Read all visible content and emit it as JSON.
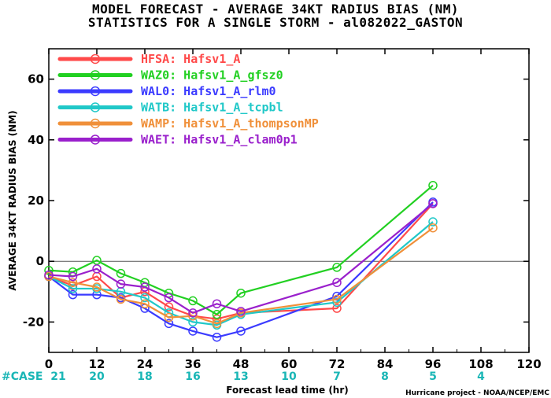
{
  "title_line1": "MODEL FORECAST - AVERAGE 34KT RADIUS BIAS (NM)",
  "title_line2": "STATISTICS FOR A SINGLE STORM - al082022_GASTON",
  "case_header": "#CASE",
  "case_counts": [
    "21",
    "20",
    "18",
    "16",
    "13",
    "10",
    "7",
    "8",
    "5",
    "4"
  ],
  "credit": "Hurricane project - NOAA/NCEP/EMC",
  "chart_data": {
    "type": "line",
    "xlabel": "Forecast lead time (hr)",
    "ylabel": "AVERAGE 34KT RADIUS BIAS (NM)",
    "xlim": [
      0,
      120
    ],
    "ylim": [
      -30,
      70
    ],
    "xticks": [
      0,
      12,
      24,
      36,
      48,
      60,
      72,
      84,
      96,
      108,
      120
    ],
    "yticks": [
      -20,
      0,
      20,
      40,
      60
    ],
    "zero_line": true,
    "legend_position": "top-left",
    "case_ticks": [
      0,
      12,
      24,
      36,
      48,
      60,
      72,
      84,
      96,
      108
    ],
    "series": [
      {
        "name": "HFSA:",
        "label": "Hafsv1_A",
        "color": "#ff4a4a",
        "x": [
          0,
          6,
          12,
          18,
          24,
          30,
          36,
          42,
          48,
          72,
          96
        ],
        "y": [
          -5,
          -8,
          -5,
          -12,
          -10,
          -15,
          -18,
          -19,
          -17,
          -15.5,
          19
        ]
      },
      {
        "name": "WAZ0:",
        "label": "Hafsv1_A_gfsz0",
        "color": "#22d022",
        "x": [
          0,
          6,
          12,
          18,
          24,
          30,
          36,
          42,
          48,
          72,
          96
        ],
        "y": [
          -3,
          -3.5,
          0.3,
          -4,
          -7,
          -10.5,
          -13,
          -17.5,
          -10.5,
          -2,
          25
        ]
      },
      {
        "name": "WAL0:",
        "label": "Hafsv1_A_rlm0",
        "color": "#3b3bff",
        "x": [
          0,
          6,
          12,
          18,
          24,
          30,
          36,
          42,
          48,
          72,
          96
        ],
        "y": [
          -5,
          -11,
          -11,
          -12,
          -15.5,
          -20.5,
          -23,
          -25,
          -23,
          -11.5,
          19.5
        ]
      },
      {
        "name": "WATB:",
        "label": "Hafsv1_A_tcpbl",
        "color": "#20c8c8",
        "x": [
          0,
          6,
          12,
          18,
          24,
          30,
          36,
          42,
          48,
          72,
          96
        ],
        "y": [
          -5,
          -9,
          -9,
          -10,
          -12,
          -17,
          -20,
          -21,
          -17.5,
          -13.5,
          13
        ]
      },
      {
        "name": "WAMP:",
        "label": "Hafsv1_A_thompsonMP",
        "color": "#f0903a",
        "x": [
          0,
          6,
          12,
          18,
          24,
          30,
          36,
          42,
          48,
          72,
          96
        ],
        "y": [
          -5,
          -7,
          -8.5,
          -12.5,
          -14,
          -18.5,
          -18,
          -20.5,
          -17,
          -12.5,
          11
        ]
      },
      {
        "name": "WAET:",
        "label": "Hafsv1_A_clam0p1",
        "color": "#9a20cc",
        "x": [
          0,
          6,
          12,
          18,
          24,
          30,
          36,
          42,
          48,
          72,
          96
        ],
        "y": [
          -4.5,
          -5,
          -2.5,
          -7.5,
          -8.5,
          -12,
          -17,
          -14,
          -16.5,
          -7,
          19
        ]
      }
    ]
  }
}
